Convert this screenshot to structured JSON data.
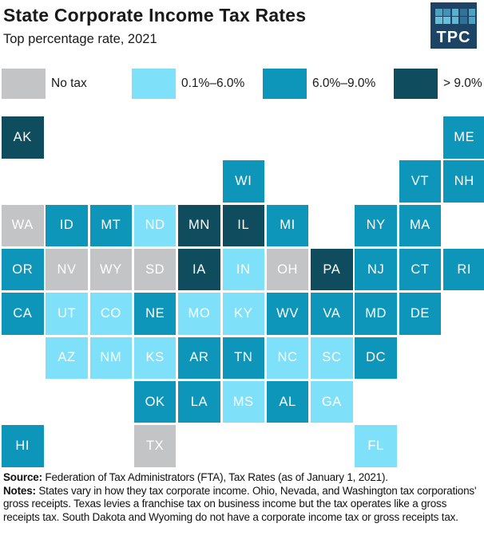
{
  "header": {
    "title": "State Corporate Income Tax Rates",
    "subtitle": "Top percentage rate, 2021",
    "logo": {
      "text": "TPC",
      "bg_color": "#1d4365",
      "square_colors": [
        "#4aa3c4",
        "#3f93b8",
        "#55b2d0",
        "#2f7399",
        "#4aa3c4",
        "#66c0da",
        "#66c0da",
        "#5fb9d5",
        "#2f7399",
        "#4aa3c4"
      ]
    }
  },
  "colors": {
    "no_tax": "#c3c4c6",
    "low": "#7fe0fa",
    "mid": "#0e95ba",
    "high": "#0e4c5e",
    "tile_text": "#ffffff"
  },
  "chart_data": {
    "type": "heatmap",
    "subtype": "us-state-tile-grid-cartogram",
    "title": "State Corporate Income Tax Rates",
    "subtitle": "Top percentage rate, 2021",
    "legend_position": "top",
    "grid": {
      "rows": 8,
      "cols": 11
    },
    "legend": [
      {
        "label": "No tax",
        "category": "no_tax",
        "color": "#c3c4c6"
      },
      {
        "label": "0.1%–6.0%",
        "category": "low",
        "color": "#7fe0fa"
      },
      {
        "label": "6.0%–9.0%",
        "category": "mid",
        "color": "#0e95ba"
      },
      {
        "label": "> 9.0%",
        "category": "high",
        "color": "#0e4c5e"
      }
    ],
    "states": [
      {
        "abbr": "AK",
        "row": 0,
        "col": 0,
        "category": "high"
      },
      {
        "abbr": "ME",
        "row": 0,
        "col": 10,
        "category": "mid"
      },
      {
        "abbr": "WI",
        "row": 1,
        "col": 5,
        "category": "mid"
      },
      {
        "abbr": "VT",
        "row": 1,
        "col": 9,
        "category": "mid"
      },
      {
        "abbr": "NH",
        "row": 1,
        "col": 10,
        "category": "mid"
      },
      {
        "abbr": "WA",
        "row": 2,
        "col": 0,
        "category": "no_tax"
      },
      {
        "abbr": "ID",
        "row": 2,
        "col": 1,
        "category": "mid"
      },
      {
        "abbr": "MT",
        "row": 2,
        "col": 2,
        "category": "mid"
      },
      {
        "abbr": "ND",
        "row": 2,
        "col": 3,
        "category": "low"
      },
      {
        "abbr": "MN",
        "row": 2,
        "col": 4,
        "category": "high"
      },
      {
        "abbr": "IL",
        "row": 2,
        "col": 5,
        "category": "high"
      },
      {
        "abbr": "MI",
        "row": 2,
        "col": 6,
        "category": "mid"
      },
      {
        "abbr": "NY",
        "row": 2,
        "col": 8,
        "category": "mid"
      },
      {
        "abbr": "MA",
        "row": 2,
        "col": 9,
        "category": "mid"
      },
      {
        "abbr": "OR",
        "row": 3,
        "col": 0,
        "category": "mid"
      },
      {
        "abbr": "NV",
        "row": 3,
        "col": 1,
        "category": "no_tax"
      },
      {
        "abbr": "WY",
        "row": 3,
        "col": 2,
        "category": "no_tax"
      },
      {
        "abbr": "SD",
        "row": 3,
        "col": 3,
        "category": "no_tax"
      },
      {
        "abbr": "IA",
        "row": 3,
        "col": 4,
        "category": "high"
      },
      {
        "abbr": "IN",
        "row": 3,
        "col": 5,
        "category": "low"
      },
      {
        "abbr": "OH",
        "row": 3,
        "col": 6,
        "category": "no_tax"
      },
      {
        "abbr": "PA",
        "row": 3,
        "col": 7,
        "category": "high"
      },
      {
        "abbr": "NJ",
        "row": 3,
        "col": 8,
        "category": "mid"
      },
      {
        "abbr": "CT",
        "row": 3,
        "col": 9,
        "category": "mid"
      },
      {
        "abbr": "RI",
        "row": 3,
        "col": 10,
        "category": "mid"
      },
      {
        "abbr": "CA",
        "row": 4,
        "col": 0,
        "category": "mid"
      },
      {
        "abbr": "UT",
        "row": 4,
        "col": 1,
        "category": "low"
      },
      {
        "abbr": "CO",
        "row": 4,
        "col": 2,
        "category": "low"
      },
      {
        "abbr": "NE",
        "row": 4,
        "col": 3,
        "category": "mid"
      },
      {
        "abbr": "MO",
        "row": 4,
        "col": 4,
        "category": "low"
      },
      {
        "abbr": "KY",
        "row": 4,
        "col": 5,
        "category": "low"
      },
      {
        "abbr": "WV",
        "row": 4,
        "col": 6,
        "category": "mid"
      },
      {
        "abbr": "VA",
        "row": 4,
        "col": 7,
        "category": "mid"
      },
      {
        "abbr": "MD",
        "row": 4,
        "col": 8,
        "category": "mid"
      },
      {
        "abbr": "DE",
        "row": 4,
        "col": 9,
        "category": "mid"
      },
      {
        "abbr": "AZ",
        "row": 5,
        "col": 1,
        "category": "low"
      },
      {
        "abbr": "NM",
        "row": 5,
        "col": 2,
        "category": "low"
      },
      {
        "abbr": "KS",
        "row": 5,
        "col": 3,
        "category": "low"
      },
      {
        "abbr": "AR",
        "row": 5,
        "col": 4,
        "category": "mid"
      },
      {
        "abbr": "TN",
        "row": 5,
        "col": 5,
        "category": "mid"
      },
      {
        "abbr": "NC",
        "row": 5,
        "col": 6,
        "category": "low"
      },
      {
        "abbr": "SC",
        "row": 5,
        "col": 7,
        "category": "low"
      },
      {
        "abbr": "DC",
        "row": 5,
        "col": 8,
        "category": "mid"
      },
      {
        "abbr": "OK",
        "row": 6,
        "col": 3,
        "category": "mid"
      },
      {
        "abbr": "LA",
        "row": 6,
        "col": 4,
        "category": "mid"
      },
      {
        "abbr": "MS",
        "row": 6,
        "col": 5,
        "category": "low"
      },
      {
        "abbr": "AL",
        "row": 6,
        "col": 6,
        "category": "mid"
      },
      {
        "abbr": "GA",
        "row": 6,
        "col": 7,
        "category": "low"
      },
      {
        "abbr": "HI",
        "row": 7,
        "col": 0,
        "category": "mid"
      },
      {
        "abbr": "TX",
        "row": 7,
        "col": 3,
        "category": "no_tax"
      },
      {
        "abbr": "FL",
        "row": 7,
        "col": 8,
        "category": "low"
      }
    ]
  },
  "footer": {
    "source_label": "Source:",
    "source_text": " Federation of Tax Administrators (FTA), Tax Rates (as of January 1, 2021).",
    "notes_label": "Notes:",
    "notes_text": " States vary in how they tax corporate income. Ohio, Nevada, and Washington tax corporations' gross receipts. Texas levies a franchise tax on business income but the tax operates like a gross receipts tax. South Dakota and Wyoming do not have a corporate income tax or gross receipts tax."
  }
}
